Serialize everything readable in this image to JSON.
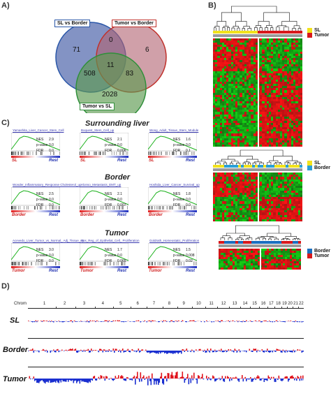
{
  "panels": {
    "a": "A)",
    "b": "B)",
    "c": "C)",
    "d": "D)"
  },
  "venn": {
    "label_sl_border": "SL vs Border",
    "label_tumor_border": "Tumor vs Border",
    "label_tumor_sl": "Tumor vs SL",
    "n_sl_only": "71",
    "n_sl_tumor_border": "0",
    "n_tumor_border_only": "6",
    "n_center": "11",
    "n_sl_tsl": "508",
    "n_tb_tsl": "83",
    "n_tsl_only": "2028",
    "colors": {
      "sl_border": "#2a57a8",
      "tumor_border": "#c0302a",
      "tumor_sl": "#2f8f3a"
    }
  },
  "heatmap_legends": [
    {
      "items": [
        {
          "label": "SL",
          "color": "#f2e21c"
        },
        {
          "label": "Tumor",
          "color": "#d8191c"
        }
      ]
    },
    {
      "items": [
        {
          "label": "SL",
          "color": "#f2e21c"
        },
        {
          "label": "Border",
          "color": "#2aa0d8"
        }
      ]
    },
    {
      "items": [
        {
          "label": "Border",
          "color": "#1a6fc0"
        },
        {
          "label": "Tumor",
          "color": "#d8191c"
        }
      ]
    }
  ],
  "gsea": {
    "sections": [
      {
        "title": "Surrounding liver",
        "left_label": "SL",
        "right_label": "Rest",
        "cards": [
          {
            "name": "Yamashita_Liver_Cancer_Stem_Cell",
            "nes": "2.9",
            "pval": "0.0",
            "fdr": "0.0"
          },
          {
            "name": "Boquest_Stem_Cell_up",
            "nes": "2.1",
            "pval": "0.0",
            "fdr": "0.006"
          },
          {
            "name": "Wong_Adult_Tissue_Stem_Module",
            "nes": "1.6",
            "pval": "0.0",
            "fdr": "0.1"
          }
        ]
      },
      {
        "title": "Border",
        "left_label": "Border",
        "right_label": "Rest",
        "cards": [
          {
            "name": "Wonder_Inflammatory_Response Cholesterol_up",
            "nes": "2.5",
            "pval": "0.0",
            "fdr": "0.0"
          },
          {
            "name": "Alonso_Metastasis_EMT_up",
            "nes": "2.1",
            "pval": "0.0",
            "fdr": "0.007"
          },
          {
            "name": "Hoshida_Liver_Cancer_Survival_up",
            "nes": "1.8",
            "pval": "0.0",
            "fdr": "0.0"
          }
        ]
      },
      {
        "title": "Tumor",
        "left_label": "Tumor",
        "right_label": "Rest",
        "cards": [
          {
            "name": "Acevedo_Liver_Tumor_vs_Normal_ Adj_Tissue_up",
            "nes": "3.0",
            "pval": "0.0",
            "fdr": "0.0"
          },
          {
            "name": "Pos_Reg_of_Epithelial_Cell_ Proliferation",
            "nes": "1.7",
            "pval": "0.0",
            "fdr": "0.065"
          },
          {
            "name": "Goldrath_Homeostatic_Proliferation",
            "nes": "1.5",
            "pval": "0.008",
            "fdr": "0.02"
          }
        ]
      }
    ],
    "stat_labels": {
      "nes": "NES",
      "pval": "p-value",
      "fdr": "FDR"
    }
  },
  "cnv": {
    "chrom_label": "Chrom",
    "chromosomes": [
      "1",
      "2",
      "3",
      "4",
      "5",
      "6",
      "7",
      "8",
      "9",
      "10",
      "11",
      "12",
      "13",
      "14",
      "15",
      "16",
      "17",
      "18",
      "19",
      "20",
      "21",
      "22"
    ],
    "rows": [
      "SL",
      "Border",
      "Tumor"
    ],
    "gain_color": "#e0141e",
    "loss_color": "#1a2fd0"
  }
}
